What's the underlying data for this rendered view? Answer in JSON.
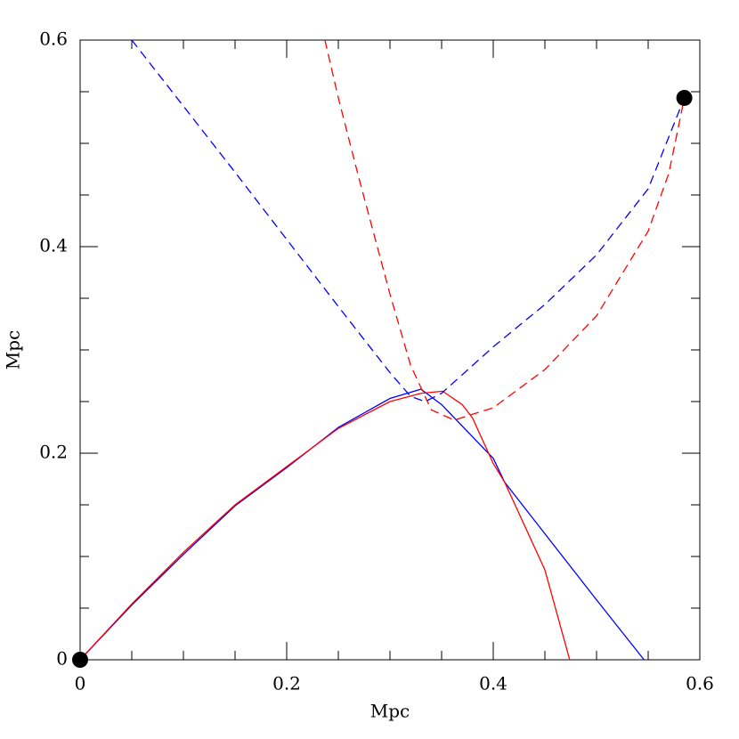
{
  "chart_data": {
    "type": "line",
    "xlabel": "Mpc",
    "ylabel": "Mpc",
    "xlim": [
      0,
      0.6
    ],
    "ylim": [
      0,
      0.6
    ],
    "xticks": [
      0,
      0.2,
      0.4,
      0.6
    ],
    "yticks": [
      0,
      0.2,
      0.4,
      0.6
    ],
    "xminorticks": [
      0.05,
      0.1,
      0.15,
      0.25,
      0.3,
      0.35,
      0.45,
      0.5,
      0.55
    ],
    "yminorticks": [
      0.05,
      0.1,
      0.15,
      0.25,
      0.3,
      0.35,
      0.45,
      0.5,
      0.55
    ],
    "series": [
      {
        "color": "#0000ff",
        "dashed": false,
        "x": [
          0,
          0.05,
          0.1,
          0.15,
          0.2,
          0.25,
          0.3,
          0.33,
          0.35,
          0.4,
          0.411,
          0.45,
          0.5,
          0.546
        ],
        "values": [
          0,
          0.053,
          0.102,
          0.149,
          0.186,
          0.225,
          0.253,
          0.262,
          0.247,
          0.195,
          0.172,
          0.122,
          0.058,
          0
        ]
      },
      {
        "color": "#ff0000",
        "dashed": false,
        "x": [
          0,
          0.05,
          0.1,
          0.15,
          0.2,
          0.25,
          0.3,
          0.33,
          0.351,
          0.37,
          0.38,
          0.4,
          0.411,
          0.45,
          0.474
        ],
        "values": [
          0,
          0.054,
          0.104,
          0.15,
          0.187,
          0.224,
          0.25,
          0.258,
          0.26,
          0.247,
          0.234,
          0.19,
          0.172,
          0.087,
          0
        ]
      },
      {
        "color": "#0000ff",
        "dashed": true,
        "x": [
          0.05,
          0.1,
          0.15,
          0.2,
          0.25,
          0.3,
          0.32,
          0.334,
          0.35,
          0.4,
          0.45,
          0.5,
          0.55,
          0.585
        ],
        "values": [
          0.6,
          0.536,
          0.472,
          0.407,
          0.342,
          0.278,
          0.255,
          0.25,
          0.258,
          0.303,
          0.344,
          0.392,
          0.456,
          0.544
        ]
      },
      {
        "color": "#ff0000",
        "dashed": true,
        "x": [
          0.237,
          0.25,
          0.27,
          0.3,
          0.32,
          0.34,
          0.362,
          0.4,
          0.45,
          0.5,
          0.55,
          0.57,
          0.585
        ],
        "values": [
          0.6,
          0.544,
          0.466,
          0.354,
          0.285,
          0.242,
          0.232,
          0.244,
          0.281,
          0.333,
          0.415,
          0.471,
          0.544
        ]
      }
    ],
    "markers": {
      "color": "#000000",
      "x": [
        0,
        0.585
      ],
      "values": [
        0,
        0.544
      ]
    }
  }
}
